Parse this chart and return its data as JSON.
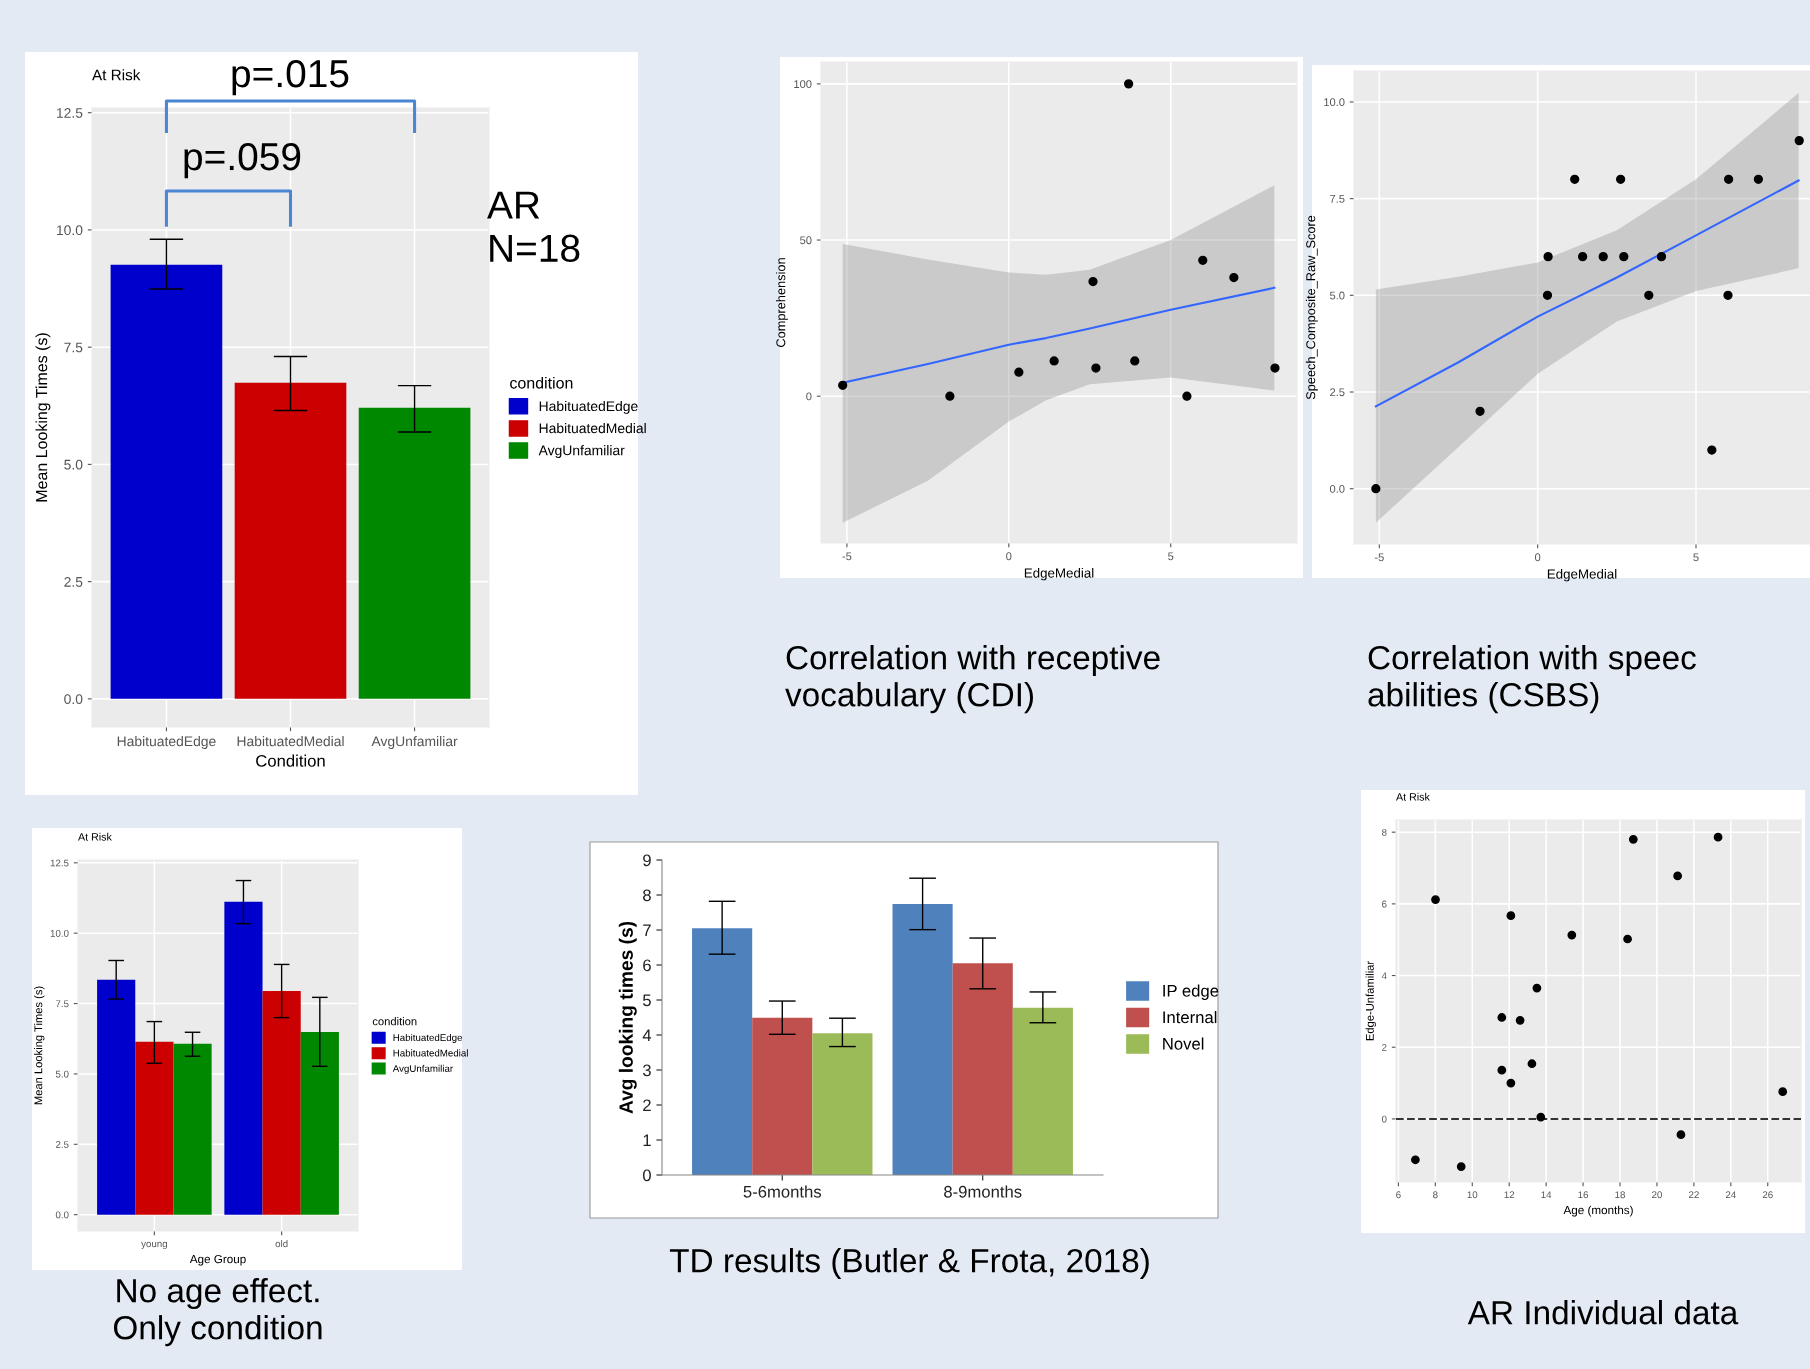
{
  "chart_data": [
    {
      "type": "bar",
      "title": "At Risk",
      "xlabel": "Condition",
      "ylabel": "Mean Looking Times (s)",
      "legend_title": "condition",
      "legend": "right",
      "grid": true,
      "categories": [
        "HabituatedEdge",
        "HabituatedMedial",
        "AvgUnfamiliar"
      ],
      "stacked": true,
      "series": [
        {
          "name": "HabituatedEdge",
          "color": "#0000cc",
          "values": [
            9.26,
            null,
            null
          ],
          "errors": [
            [
              8.74,
              9.8
            ],
            null,
            null
          ]
        },
        {
          "name": "HabituatedMedial",
          "color": "#cc0000",
          "values": [
            null,
            6.74,
            null
          ],
          "errors": [
            null,
            [
              6.15,
              7.3
            ],
            null
          ]
        },
        {
          "name": "AvgUnfamiliar",
          "color": "#008800",
          "values": [
            null,
            null,
            6.21
          ],
          "errors": [
            null,
            null,
            [
              5.69,
              6.68
            ]
          ]
        }
      ],
      "ylim": [
        -0.6,
        12.6
      ],
      "yticks": [
        {
          "value": 0,
          "label": "0.0"
        },
        2.5,
        {
          "value": 5,
          "label": "5.0"
        },
        7.5,
        {
          "value": 10,
          "label": "10.0"
        },
        12.5
      ],
      "annotations": [
        "p=.015",
        "p=.059",
        "AR\nN=18"
      ]
    },
    {
      "type": "scatter",
      "xlabel": "EdgeMedial",
      "ylabel": "Comprehension",
      "grid": true,
      "marker": "circle",
      "series": [
        {
          "type": "scatter",
          "color": "#000000",
          "x": [
            -5.13,
            -1.82,
            0.31,
            1.4,
            2.6,
            2.69,
            3.7,
            3.89,
            5.5,
            5.99,
            6.95,
            8.22
          ],
          "values": [
            3.5,
            0,
            7.7,
            11.3,
            36.7,
            9.0,
            100,
            11.3,
            0,
            43.5,
            38.0,
            9.0
          ]
        },
        {
          "type": "line",
          "marker": "none",
          "color": "#3366ff",
          "x": [
            -5.13,
            -2.5,
            0,
            1.15,
            2.5,
            5,
            8.2
          ],
          "values": [
            4.3,
            10.3,
            16.5,
            18.6,
            21.7,
            27.7,
            34.7
          ],
          "lower": [
            -40.5,
            -27.1,
            -8.1,
            -1.3,
            3.8,
            6.0,
            1.8
          ],
          "upper": [
            48.7,
            43.8,
            39.6,
            38.9,
            40.5,
            50.0,
            67.5
          ]
        }
      ],
      "xlim": [
        -5.8,
        8.9
      ],
      "ylim": [
        -47,
        107
      ],
      "xticks": [
        -5,
        0,
        5
      ],
      "yticks": [
        0,
        50,
        100
      ],
      "annotations": [
        "Correlation with receptive\nvocabulary (CDI)"
      ]
    },
    {
      "type": "scatter",
      "xlabel": "EdgeMedial",
      "ylabel": "Speech_Composite_Raw_Score",
      "grid": true,
      "marker": "circle",
      "series": [
        {
          "type": "scatter",
          "color": "#000000",
          "x": [
            -5.11,
            -1.82,
            0.33,
            0.31,
            1.17,
            1.42,
            2.07,
            2.62,
            2.72,
            3.51,
            3.91,
            5.5,
            6.01,
            6.03,
            6.97,
            8.26
          ],
          "values": [
            0,
            2.0,
            6.0,
            5.0,
            8.0,
            6.0,
            6.0,
            8.0,
            6.0,
            5.0,
            6.0,
            1.0,
            5.0,
            8.0,
            8.0,
            9.0
          ]
        },
        {
          "type": "line",
          "marker": "none",
          "color": "#3366ff",
          "x": [
            -5.11,
            -2.5,
            0,
            2.5,
            5,
            8.24
          ],
          "values": [
            2.13,
            3.27,
            4.45,
            5.46,
            6.55,
            7.97
          ],
          "lower": [
            -0.88,
            1.08,
            2.97,
            4.32,
            5.11,
            5.7
          ],
          "upper": [
            5.15,
            5.48,
            5.85,
            6.68,
            8.0,
            10.23
          ]
        }
      ],
      "xlim": [
        -5.8,
        8.6
      ],
      "ylim": [
        -1.43,
        10.8
      ],
      "xticks": [
        -5,
        0,
        5
      ],
      "yticks": [
        {
          "value": 0,
          "label": "0.0"
        },
        2.5,
        {
          "value": 5,
          "label": "5.0"
        },
        7.5,
        {
          "value": 10,
          "label": "10.0"
        }
      ],
      "annotations": [
        "Correlation with speec\nabilities (CSBS)"
      ]
    },
    {
      "type": "bar",
      "title": "At Risk",
      "xlabel": "Age Group",
      "ylabel": "Mean Looking Times (s)",
      "legend_title": "condition",
      "legend": "right",
      "grid": true,
      "categories": [
        "young",
        "old"
      ],
      "series": [
        {
          "name": "HabituatedEdge",
          "color": "#0000cc",
          "values": [
            8.35,
            11.12
          ],
          "errors": [
            [
              7.66,
              9.03
            ],
            [
              10.34,
              11.87
            ]
          ]
        },
        {
          "name": "HabituatedMedial",
          "color": "#cc0000",
          "values": [
            6.14,
            7.95
          ],
          "errors": [
            [
              5.38,
              6.86
            ],
            [
              7.0,
              8.89
            ]
          ]
        },
        {
          "name": "AvgUnfamiliar",
          "color": "#008800",
          "values": [
            6.07,
            6.49
          ],
          "errors": [
            [
              5.63,
              6.48
            ],
            [
              5.27,
              7.72
            ]
          ]
        }
      ],
      "ylim": [
        -0.58,
        12.6
      ],
      "yticks": [
        {
          "value": 0,
          "label": "0.0"
        },
        2.5,
        {
          "value": 5,
          "label": "5.0"
        },
        7.5,
        {
          "value": 10,
          "label": "10.0"
        },
        12.5
      ],
      "annotations": [
        "No age effect.\nOnly condition"
      ]
    },
    {
      "type": "bar",
      "ylabel": "Avg looking times (s)",
      "legend": "right",
      "categories": [
        "5-6months",
        "8-9months"
      ],
      "series": [
        {
          "name": "IP edge",
          "color": "#4f81bd",
          "values": [
            7.05,
            7.74
          ],
          "errors": [
            [
              6.31,
              7.82
            ],
            [
              7.01,
              8.48
            ]
          ]
        },
        {
          "name": "Internal",
          "color": "#c0504d",
          "values": [
            4.49,
            6.05
          ],
          "errors": [
            [
              4.02,
              4.97
            ],
            [
              5.32,
              6.77
            ]
          ]
        },
        {
          "name": "Novel",
          "color": "#9bbb59",
          "values": [
            4.05,
            4.78
          ],
          "errors": [
            [
              3.67,
              4.48
            ],
            [
              4.35,
              5.23
            ]
          ]
        }
      ],
      "ylim": [
        0,
        9
      ],
      "yticks": [
        0,
        1,
        2,
        3,
        4,
        5,
        6,
        7,
        8,
        9
      ],
      "annotations": [
        "TD results (Butler & Frota, 2018)"
      ]
    },
    {
      "type": "scatter",
      "title": "At Risk",
      "xlabel": "Age (months)",
      "ylabel": "Edge-Unfamiliar",
      "grid": true,
      "marker": "circle",
      "color": "#000000",
      "x": [
        6.92,
        8.01,
        9.4,
        11.6,
        11.6,
        12.09,
        12.09,
        12.59,
        13.23,
        13.5,
        13.71,
        15.39,
        18.41,
        18.72,
        21.12,
        21.3,
        23.31,
        26.81
      ],
      "values": [
        -1.14,
        6.12,
        -1.33,
        2.83,
        1.36,
        5.67,
        1.0,
        2.75,
        1.54,
        3.65,
        0.05,
        5.13,
        5.02,
        7.8,
        6.78,
        -0.44,
        7.86,
        0.76
      ],
      "ref_lines": [
        {
          "axis": "y",
          "value": 0,
          "line_style": "dashed",
          "color": "#333333"
        }
      ],
      "xlim": [
        5.87,
        27.8
      ],
      "ylim": [
        -1.76,
        8.34
      ],
      "xticks": [
        6,
        8,
        10,
        12,
        14,
        16,
        18,
        20,
        22,
        24,
        26
      ],
      "yticks": [
        0,
        2,
        4,
        6,
        8
      ],
      "annotations": [
        "AR Individual data"
      ]
    }
  ]
}
